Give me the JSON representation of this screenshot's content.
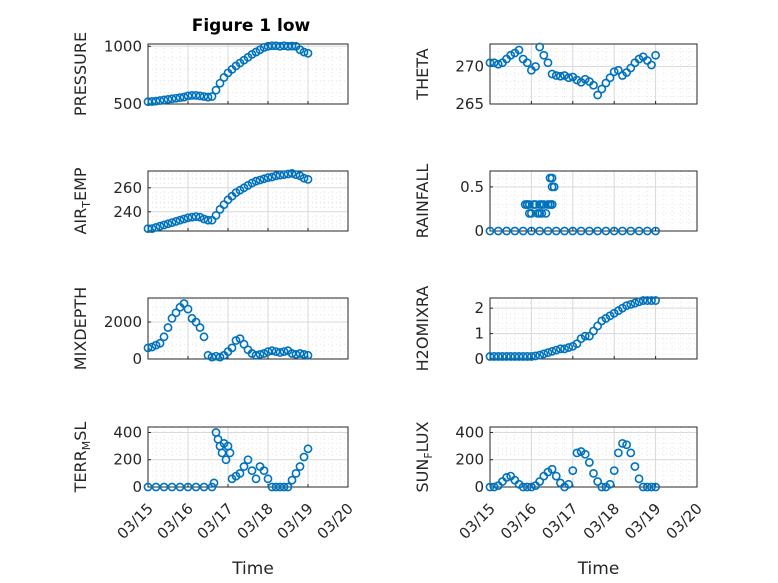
{
  "figure_title": "Figure 1 low",
  "marker_color": "#0072BD",
  "chart_data": [
    {
      "type": "scatter",
      "ylabel": "PRESSURE",
      "ylabel_sub": "",
      "yticks": [
        500,
        1000
      ],
      "ylim": [
        500,
        1020
      ],
      "xlim": [
        "03/15",
        "03/20"
      ],
      "xticklabels": [
        "03/15",
        "03/16",
        "03/17",
        "03/18",
        "03/19",
        "03/20"
      ],
      "show_xticklabels": false,
      "xlabel": "",
      "grid": "major+minor",
      "x": [
        0,
        0.1,
        0.2,
        0.3,
        0.4,
        0.5,
        0.6,
        0.7,
        0.8,
        0.9,
        1.0,
        1.1,
        1.2,
        1.3,
        1.4,
        1.5,
        1.6,
        1.7,
        1.8,
        1.9,
        2.0,
        2.1,
        2.2,
        2.3,
        2.4,
        2.5,
        2.6,
        2.7,
        2.8,
        2.9,
        3.0,
        3.1,
        3.2,
        3.3,
        3.4,
        3.5,
        3.6,
        3.7,
        3.8,
        3.9,
        4.0
      ],
      "y": [
        520,
        522,
        525,
        530,
        535,
        540,
        545,
        550,
        555,
        560,
        570,
        575,
        575,
        570,
        565,
        560,
        565,
        620,
        680,
        730,
        770,
        800,
        830,
        855,
        880,
        905,
        930,
        950,
        970,
        990,
        1000,
        1005,
        1005,
        1000,
        1005,
        1000,
        1002,
        1000,
        970,
        950,
        940
      ]
    },
    {
      "type": "scatter",
      "ylabel": "THETA",
      "ylabel_sub": "",
      "yticks": [
        265,
        270
      ],
      "ylim": [
        265,
        273
      ],
      "xlim": [
        "03/15",
        "03/20"
      ],
      "xticklabels": [
        "03/15",
        "03/16",
        "03/17",
        "03/18",
        "03/19",
        "03/20"
      ],
      "show_xticklabels": false,
      "xlabel": "",
      "grid": "major+minor",
      "x": [
        0,
        0.1,
        0.2,
        0.3,
        0.4,
        0.5,
        0.6,
        0.7,
        0.8,
        0.9,
        1.0,
        1.1,
        1.2,
        1.3,
        1.4,
        1.5,
        1.6,
        1.7,
        1.8,
        1.9,
        2.0,
        2.1,
        2.2,
        2.3,
        2.4,
        2.5,
        2.6,
        2.7,
        2.8,
        2.9,
        3.0,
        3.1,
        3.2,
        3.3,
        3.4,
        3.5,
        3.6,
        3.7,
        3.8,
        3.9,
        4.0
      ],
      "y": [
        270.5,
        270.5,
        270.3,
        270.5,
        271,
        271.5,
        271.8,
        272.2,
        271,
        270.5,
        269.5,
        270,
        272.6,
        271.5,
        270.5,
        269,
        268.8,
        268.7,
        268.8,
        268.5,
        268.6,
        268.2,
        267.9,
        268.3,
        268,
        267.5,
        266.2,
        267,
        267.8,
        268.5,
        269.3,
        269.5,
        268.8,
        269.2,
        269.8,
        270.5,
        271,
        271.3,
        270.8,
        270.2,
        271.5
      ]
    },
    {
      "type": "scatter",
      "ylabel": "AIR",
      "ylabel_sub": "T",
      "ylabel_rest": "EMP",
      "yticks": [
        240,
        260
      ],
      "ylim": [
        224,
        274
      ],
      "xlim": [
        "03/15",
        "03/20"
      ],
      "xticklabels": [
        "03/15",
        "03/16",
        "03/17",
        "03/18",
        "03/19",
        "03/20"
      ],
      "show_xticklabels": false,
      "xlabel": "",
      "grid": "major+minor",
      "x": [
        0,
        0.1,
        0.2,
        0.3,
        0.4,
        0.5,
        0.6,
        0.7,
        0.8,
        0.9,
        1.0,
        1.1,
        1.2,
        1.3,
        1.4,
        1.5,
        1.6,
        1.7,
        1.8,
        1.9,
        2.0,
        2.1,
        2.2,
        2.3,
        2.4,
        2.5,
        2.6,
        2.7,
        2.8,
        2.9,
        3.0,
        3.1,
        3.2,
        3.3,
        3.4,
        3.5,
        3.6,
        3.7,
        3.8,
        3.9,
        4.0
      ],
      "y": [
        226,
        226,
        227,
        228,
        229,
        230,
        231,
        232,
        233,
        234,
        235,
        235.5,
        236,
        235.5,
        234,
        233,
        233,
        237,
        242,
        246,
        250,
        253,
        256,
        258,
        260,
        262,
        264,
        265.5,
        266.5,
        267.5,
        268.5,
        269,
        270,
        270.5,
        271,
        271.5,
        272,
        271,
        270,
        268,
        267
      ]
    },
    {
      "type": "scatter",
      "ylabel": "RAINFALL",
      "ylabel_sub": "",
      "yticks": [
        0,
        0.5
      ],
      "ylim": [
        0,
        0.68
      ],
      "xlim": [
        "03/15",
        "03/20"
      ],
      "xticklabels": [
        "03/15",
        "03/16",
        "03/17",
        "03/18",
        "03/19",
        "03/20"
      ],
      "show_xticklabels": false,
      "xlabel": "",
      "grid": "major+minor",
      "x": [
        0,
        0.2,
        0.4,
        0.6,
        0.8,
        1.0,
        1.2,
        1.4,
        1.6,
        1.8,
        2.0,
        2.2,
        2.4,
        2.6,
        2.8,
        3.0,
        3.2,
        3.4,
        3.6,
        3.8,
        4.0,
        0.85,
        0.9,
        0.95,
        1.0,
        1.05,
        1.1,
        1.15,
        1.2,
        1.25,
        1.3,
        1.35,
        1.4,
        1.45,
        1.5,
        0.9,
        0.95,
        1.2,
        1.25,
        1.5,
        1.55,
        1.45,
        1.5,
        1.5
      ],
      "y": [
        0,
        0,
        0,
        0,
        0,
        0,
        0,
        0,
        0,
        0,
        0,
        0,
        0,
        0,
        0,
        0,
        0,
        0,
        0,
        0,
        0,
        0.3,
        0.3,
        0.2,
        0.2,
        0.3,
        0.3,
        0.2,
        0.3,
        0.3,
        0.3,
        0.2,
        0.3,
        0.3,
        0.3,
        0.3,
        0.3,
        0.2,
        0.2,
        0.5,
        0.5,
        0.6,
        0.6,
        0.3
      ]
    },
    {
      "type": "scatter",
      "ylabel": "MIXDEPTH",
      "ylabel_sub": "",
      "yticks": [
        0,
        2000
      ],
      "ylim": [
        0,
        3300
      ],
      "xlim": [
        "03/15",
        "03/20"
      ],
      "xticklabels": [
        "03/15",
        "03/16",
        "03/17",
        "03/18",
        "03/19",
        "03/20"
      ],
      "show_xticklabels": false,
      "xlabel": "",
      "grid": "major+minor",
      "x": [
        0,
        0.1,
        0.2,
        0.3,
        0.4,
        0.5,
        0.6,
        0.7,
        0.8,
        0.9,
        1.0,
        1.1,
        1.2,
        1.3,
        1.4,
        1.5,
        1.6,
        1.7,
        1.8,
        1.9,
        2.0,
        2.1,
        2.2,
        2.3,
        2.4,
        2.5,
        2.6,
        2.7,
        2.8,
        2.9,
        3.0,
        3.1,
        3.2,
        3.3,
        3.4,
        3.5,
        3.6,
        3.7,
        3.8,
        3.9,
        4.0
      ],
      "y": [
        600,
        650,
        750,
        850,
        1200,
        1700,
        2200,
        2500,
        2800,
        3000,
        2700,
        2200,
        2000,
        1700,
        1200,
        200,
        100,
        150,
        100,
        200,
        400,
        600,
        1000,
        1100,
        800,
        500,
        300,
        200,
        250,
        300,
        400,
        450,
        400,
        350,
        400,
        450,
        300,
        250,
        300,
        250,
        200
      ]
    },
    {
      "type": "scatter",
      "ylabel": "H2OMIXRA",
      "ylabel_sub": "",
      "yticks": [
        0,
        1,
        2
      ],
      "ylim": [
        0,
        2.4
      ],
      "xlim": [
        "03/15",
        "03/20"
      ],
      "xticklabels": [
        "03/15",
        "03/16",
        "03/17",
        "03/18",
        "03/19",
        "03/20"
      ],
      "show_xticklabels": false,
      "xlabel": "",
      "grid": "major+minor",
      "x": [
        0,
        0.1,
        0.2,
        0.3,
        0.4,
        0.5,
        0.6,
        0.7,
        0.8,
        0.9,
        1.0,
        1.1,
        1.2,
        1.3,
        1.4,
        1.5,
        1.6,
        1.7,
        1.8,
        1.9,
        2.0,
        2.1,
        2.2,
        2.3,
        2.4,
        2.5,
        2.6,
        2.7,
        2.8,
        2.9,
        3.0,
        3.1,
        3.2,
        3.3,
        3.4,
        3.5,
        3.6,
        3.7,
        3.8,
        3.9,
        4.0
      ],
      "y": [
        0.1,
        0.1,
        0.1,
        0.1,
        0.1,
        0.1,
        0.1,
        0.1,
        0.1,
        0.1,
        0.1,
        0.12,
        0.15,
        0.2,
        0.25,
        0.3,
        0.35,
        0.4,
        0.4,
        0.45,
        0.5,
        0.6,
        0.8,
        0.9,
        0.9,
        1.1,
        1.3,
        1.5,
        1.6,
        1.7,
        1.8,
        1.9,
        2.0,
        2.1,
        2.15,
        2.2,
        2.25,
        2.3,
        2.3,
        2.3,
        2.3
      ]
    },
    {
      "type": "scatter",
      "ylabel": "TERR",
      "ylabel_sub": "M",
      "ylabel_rest": "SL",
      "yticks": [
        0,
        200,
        400
      ],
      "ylim": [
        0,
        440
      ],
      "xlim": [
        "03/15",
        "03/20"
      ],
      "xticklabels": [
        "03/15",
        "03/16",
        "03/17",
        "03/18",
        "03/19",
        "03/20"
      ],
      "show_xticklabels": true,
      "xlabel": "Time",
      "grid": "major+minor",
      "x": [
        0,
        0.2,
        0.4,
        0.6,
        0.8,
        1.0,
        1.2,
        1.4,
        1.6,
        1.65,
        1.7,
        1.75,
        1.8,
        1.85,
        1.9,
        1.95,
        2.0,
        2.05,
        2.1,
        2.2,
        2.3,
        2.4,
        2.5,
        2.6,
        2.7,
        2.8,
        2.9,
        3.0,
        3.1,
        3.2,
        3.3,
        3.4,
        3.5,
        3.6,
        3.7,
        3.8,
        3.9,
        4.0
      ],
      "y": [
        0,
        0,
        0,
        0,
        0,
        0,
        0,
        0,
        0,
        30,
        400,
        350,
        300,
        250,
        320,
        200,
        300,
        250,
        60,
        80,
        100,
        150,
        200,
        120,
        60,
        150,
        120,
        60,
        0,
        0,
        0,
        0,
        0,
        50,
        100,
        150,
        220,
        280
      ]
    },
    {
      "type": "scatter",
      "ylabel": "SUN",
      "ylabel_sub": "F",
      "ylabel_rest": "LUX",
      "yticks": [
        0,
        200,
        400
      ],
      "ylim": [
        0,
        440
      ],
      "xlim": [
        "03/15",
        "03/20"
      ],
      "xticklabels": [
        "03/15",
        "03/16",
        "03/17",
        "03/18",
        "03/19",
        "03/20"
      ],
      "show_xticklabels": true,
      "xlabel": "Time",
      "grid": "major+minor",
      "x": [
        0,
        0.1,
        0.2,
        0.3,
        0.4,
        0.5,
        0.6,
        0.7,
        0.8,
        0.9,
        1.0,
        1.1,
        1.2,
        1.3,
        1.4,
        1.5,
        1.6,
        1.7,
        1.8,
        1.9,
        2.0,
        2.1,
        2.2,
        2.3,
        2.4,
        2.5,
        2.6,
        2.7,
        2.8,
        2.9,
        3.0,
        3.1,
        3.2,
        3.3,
        3.4,
        3.5,
        3.6,
        3.7,
        3.8,
        3.9,
        4.0
      ],
      "y": [
        0,
        0,
        10,
        40,
        70,
        80,
        50,
        20,
        0,
        0,
        0,
        10,
        40,
        80,
        110,
        130,
        80,
        30,
        0,
        20,
        120,
        250,
        260,
        240,
        180,
        100,
        40,
        0,
        0,
        20,
        120,
        250,
        320,
        310,
        250,
        150,
        60,
        0,
        0,
        0,
        0
      ]
    }
  ]
}
